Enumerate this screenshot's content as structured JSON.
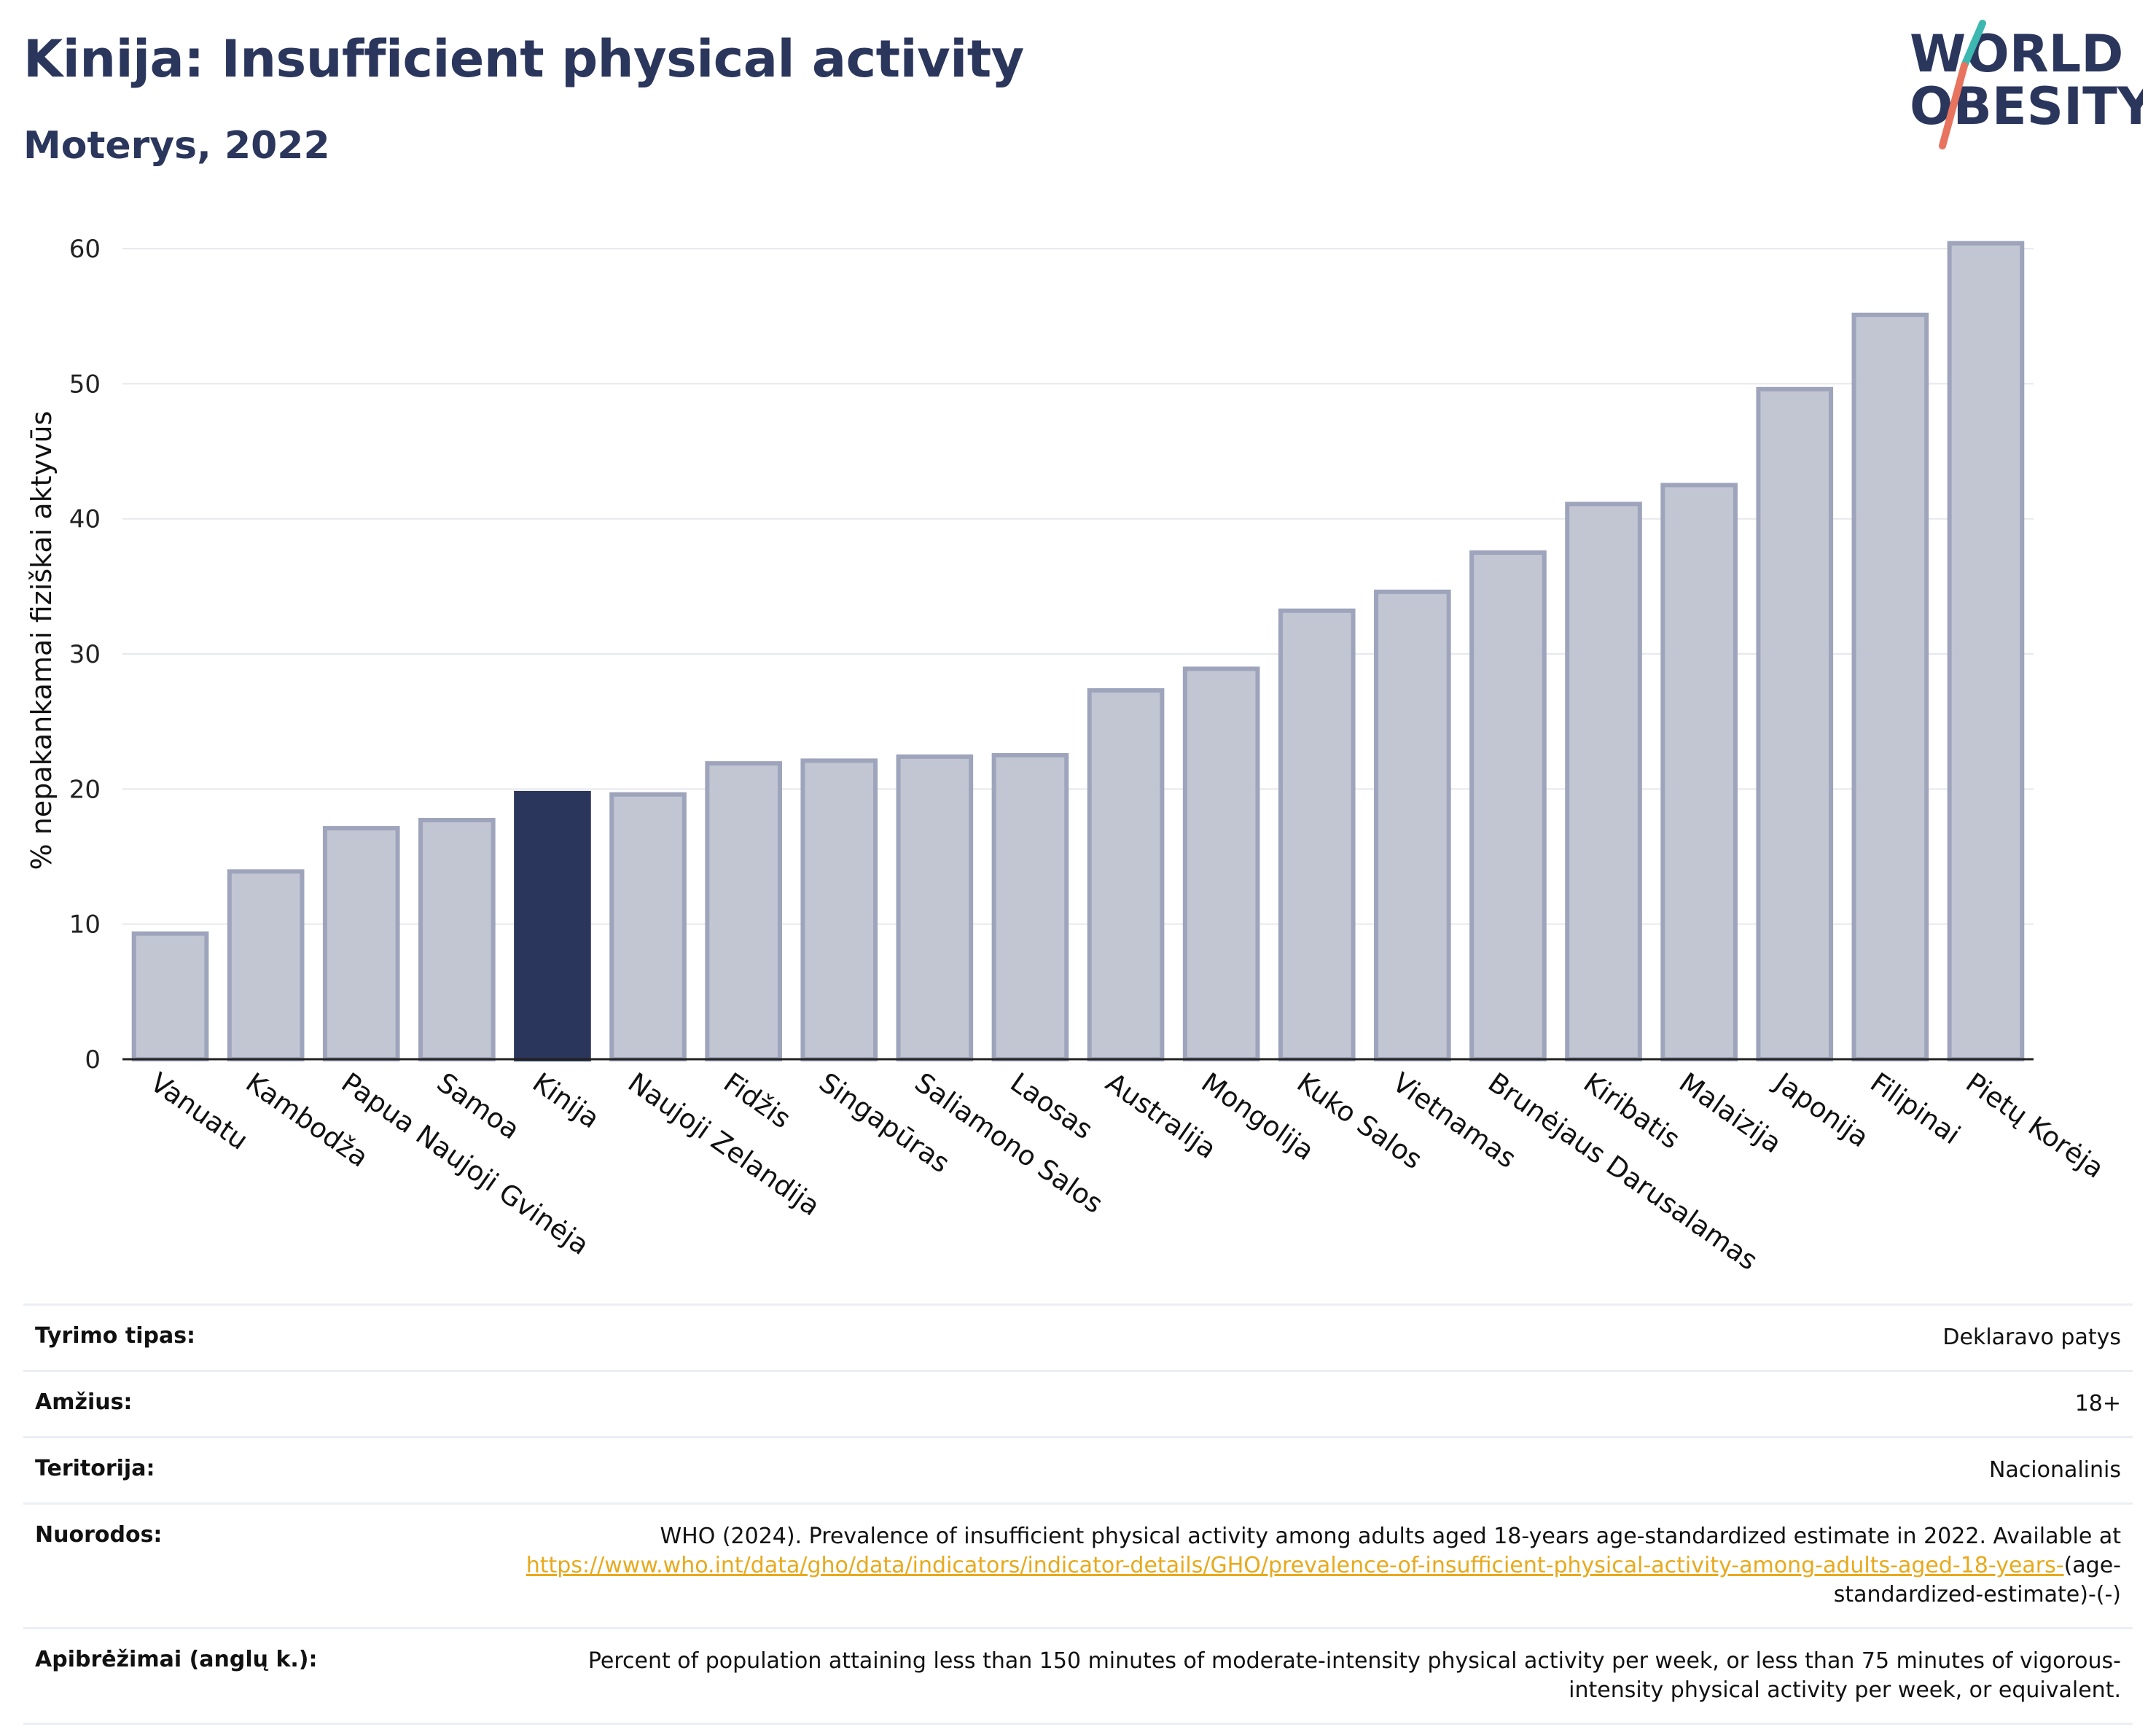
{
  "header": {
    "title": "Kinija: Insufficient physical activity",
    "subtitle": "Moterys, 2022"
  },
  "logo": {
    "line1": "WORLD",
    "line2": "OBESITY"
  },
  "colors": {
    "bar": "#bfc3d1",
    "bar_edge": "#9ea4bb",
    "highlight": "#2b365c",
    "brand": "#2b365c",
    "link": "#e8a91c",
    "logo_teal": "#3cb8b0",
    "logo_coral": "#e8735f"
  },
  "chart_data": {
    "type": "bar",
    "title": "Kinija: Insufficient physical activity",
    "subtitle": "Moterys, 2022",
    "xlabel": "",
    "ylabel": "% nepakankamai fiziškai aktyvūs",
    "ylim": [
      0,
      62
    ],
    "yticks": [
      0,
      10,
      20,
      30,
      40,
      50,
      60
    ],
    "grid": true,
    "highlight": "Kinija",
    "categories": [
      "Vanuatu",
      "Kambodža",
      "Papua Naujoji Gvinėja",
      "Samoa",
      "Kinija",
      "Naujoji Zelandija",
      "Fidžis",
      "Singapūras",
      "Saliamono Salos",
      "Laosas",
      "Australija",
      "Mongolija",
      "Kuko Salos",
      "Vietnamas",
      "Brunėjaus Darusalamas",
      "Kiribatis",
      "Malaizija",
      "Japonija",
      "Filipinai",
      "Pietų Korėja"
    ],
    "values": [
      9.3,
      13.9,
      17.1,
      17.7,
      19.7,
      19.6,
      21.9,
      22.1,
      22.4,
      22.5,
      27.3,
      28.9,
      33.2,
      34.6,
      37.5,
      41.1,
      42.5,
      49.6,
      55.1,
      60.4
    ]
  },
  "meta": {
    "rows": [
      {
        "key": "Tyrimo tipas:",
        "value": "Deklaravo patys"
      },
      {
        "key": "Amžius:",
        "value": "18+"
      },
      {
        "key": "Teritorija:",
        "value": "Nacionalinis"
      },
      {
        "key": "Nuorodos:",
        "value": "WHO (2024). Prevalence of insufficient physical activity among adults aged 18-years age-standardized estimate in 2022. Available at",
        "link": "https://www.who.int/data/gho/data/indicators/indicator-details/GHO/prevalence-of-insufficient-physical-activity-among-adults-aged-18-years-",
        "suffix": "(age-standardized-estimate)-(-)"
      },
      {
        "key": "Apibrėžimai (anglų k.):",
        "value": "Percent of population attaining less than 150 minutes of moderate-intensity physical activity per week, or less than 75 minutes of vigorous-intensity physical activity per week, or equivalent."
      }
    ]
  }
}
